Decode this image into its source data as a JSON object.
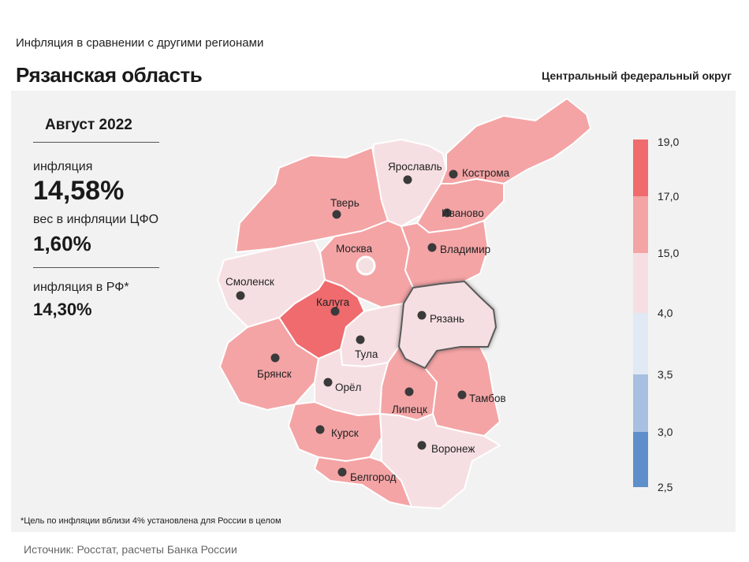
{
  "header": {
    "subtitle": "Инфляция в сравнении с другими регионами",
    "region_title": "Рязанская область",
    "district_label": "Центральный федеральный округ"
  },
  "info": {
    "period": "Август 2022",
    "inflation_label": "инфляция",
    "inflation_value": "14,58%",
    "weight_label": "вес в инфляции ЦФО",
    "weight_value": "1,60%",
    "rf_label": "инфляция в РФ*",
    "rf_value": "14,30%"
  },
  "footnote": "*Цель по инфляции вблизи 4% установлена для России в целом",
  "source": "Источник: Росстат, расчеты Банка России",
  "scale": {
    "labels": [
      "19,0",
      "17,0",
      "15,0",
      "4,0",
      "3,5",
      "3,0",
      "2,5"
    ],
    "colors": [
      "#ef6b6e",
      "#f4a4a5",
      "#f6dfe2",
      "#e1e9f4",
      "#a7c0e1",
      "#5e8fcb"
    ]
  },
  "highlighted_region": "Рязань",
  "cities": [
    {
      "name": "Ярославль",
      "fill": "#f6dfe2"
    },
    {
      "name": "Кострома",
      "fill": "#f4a4a5"
    },
    {
      "name": "Тверь",
      "fill": "#f4a4a5"
    },
    {
      "name": "Иваново",
      "fill": "#f4a4a5"
    },
    {
      "name": "Москва",
      "fill": "#f4a4a5"
    },
    {
      "name": "Владимир",
      "fill": "#f4a4a5"
    },
    {
      "name": "Смоленск",
      "fill": "#f6dfe2"
    },
    {
      "name": "Калуга",
      "fill": "#ef6b6e"
    },
    {
      "name": "Рязань",
      "fill": "#f6dfe2"
    },
    {
      "name": "Тула",
      "fill": "#f6dfe2"
    },
    {
      "name": "Брянск",
      "fill": "#f4a4a5"
    },
    {
      "name": "Орёл",
      "fill": "#f6dfe2"
    },
    {
      "name": "Липецк",
      "fill": "#f4a4a5"
    },
    {
      "name": "Тамбов",
      "fill": "#f4a4a5"
    },
    {
      "name": "Курск",
      "fill": "#f4a4a5"
    },
    {
      "name": "Воронеж",
      "fill": "#f6dfe2"
    },
    {
      "name": "Белгород",
      "fill": "#f4a4a5"
    }
  ]
}
